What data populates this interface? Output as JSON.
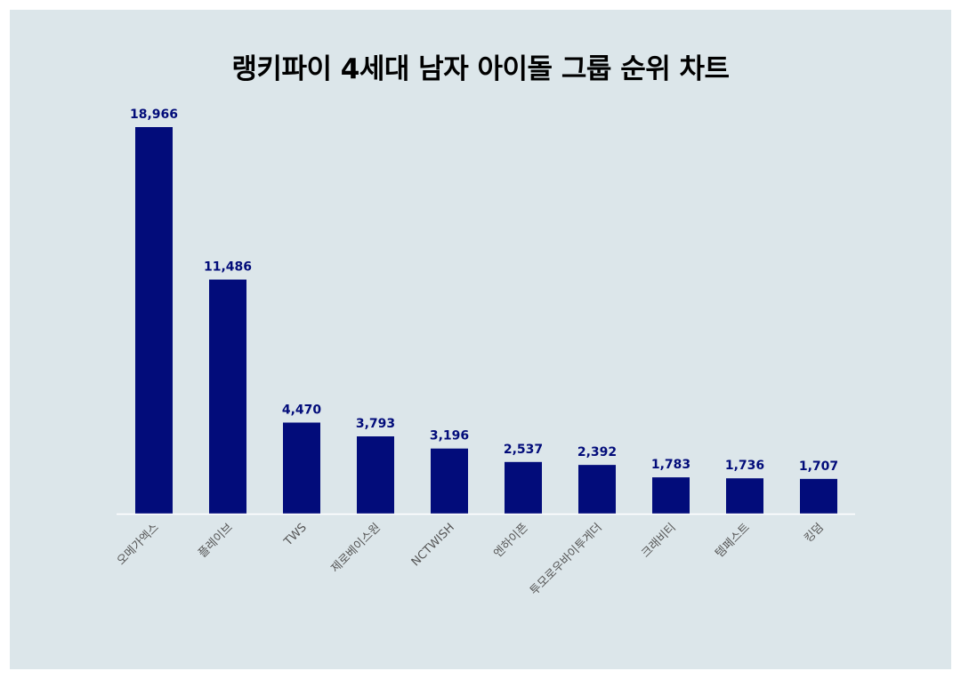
{
  "title": "랭키파이 4세대 남자 아이돌 그룹 순위 차트",
  "colors": {
    "panel": "#dce6ea",
    "bar": "#020c7a",
    "label": "#020c7a",
    "axis": "#ffffff",
    "tick": "#555555"
  },
  "chart_data": {
    "type": "bar",
    "title": "랭키파이 4세대 남자 아이돌 그룹 순위 차트",
    "xlabel": "",
    "ylabel": "",
    "categories": [
      "오메가엑스",
      "플레이브",
      "TWS",
      "제로베이스원",
      "NCTWISH",
      "엔하이픈",
      "투모로우바이투게더",
      "크래비티",
      "템페스트",
      "킹덤"
    ],
    "values": [
      18966,
      11486,
      4470,
      3793,
      3196,
      2537,
      2392,
      1783,
      1736,
      1707
    ],
    "value_labels": [
      "18,966",
      "11,486",
      "4,470",
      "3,793",
      "3,196",
      "2,537",
      "2,392",
      "1,783",
      "1,736",
      "1,707"
    ],
    "ylim": [
      0,
      18966
    ],
    "grid": false,
    "legend": "none"
  }
}
